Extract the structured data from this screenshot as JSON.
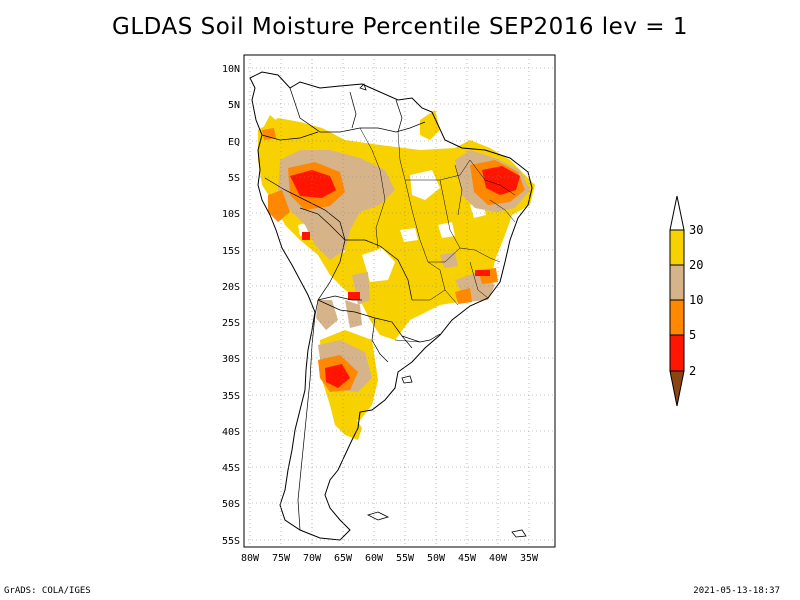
{
  "title": "GLDAS Soil Moisture Percentile SEP2016 lev = 1",
  "footer": {
    "left": "GrADS: COLA/IGES",
    "right": "2021-05-13-18:37"
  },
  "map": {
    "lon_ticks": [
      "80W",
      "75W",
      "70W",
      "65W",
      "60W",
      "55W",
      "50W",
      "45W",
      "40W",
      "35W"
    ],
    "lat_ticks": [
      "10N",
      "5N",
      "EQ",
      "5S",
      "10S",
      "15S",
      "20S",
      "25S",
      "30S",
      "35S",
      "40S",
      "45S",
      "50S",
      "55S"
    ]
  },
  "legend": {
    "labels": [
      "30",
      "20",
      "10",
      "5",
      "2"
    ],
    "colors": {
      "above30": "#ffffff",
      "c20_30": "#f8d200",
      "c10_20": "#d7b38a",
      "c5_10": "#ff8800",
      "c2_5": "#ff1500",
      "below2": "#8b4513"
    }
  }
}
